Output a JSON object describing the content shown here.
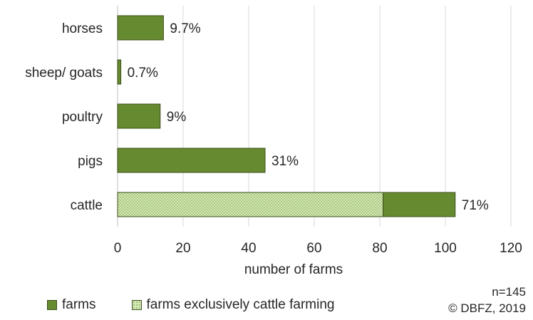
{
  "chart_data": {
    "type": "bar",
    "orientation": "horizontal",
    "stacked": true,
    "categories": [
      "horses",
      "sheep/ goats",
      "poultry",
      "pigs",
      "cattle"
    ],
    "series": [
      {
        "name": "farms exclusively cattle farming",
        "values": [
          0,
          0,
          0,
          0,
          81
        ],
        "color": "#c6e0a8"
      },
      {
        "name": "farms",
        "values": [
          14,
          1,
          13,
          45,
          22
        ],
        "color": "#668a2f"
      }
    ],
    "data_labels": [
      "9.7%",
      "0.7%",
      "9%",
      "31%",
      "71%"
    ],
    "xlabel": "number of farms",
    "xlim": [
      0,
      120
    ],
    "xticks": [
      0,
      20,
      40,
      60,
      80,
      100,
      120
    ],
    "grid": "vertical",
    "legend_position": "bottom-left"
  },
  "notes": {
    "n": "n=145",
    "copyright": "© DBFZ, 2019"
  }
}
